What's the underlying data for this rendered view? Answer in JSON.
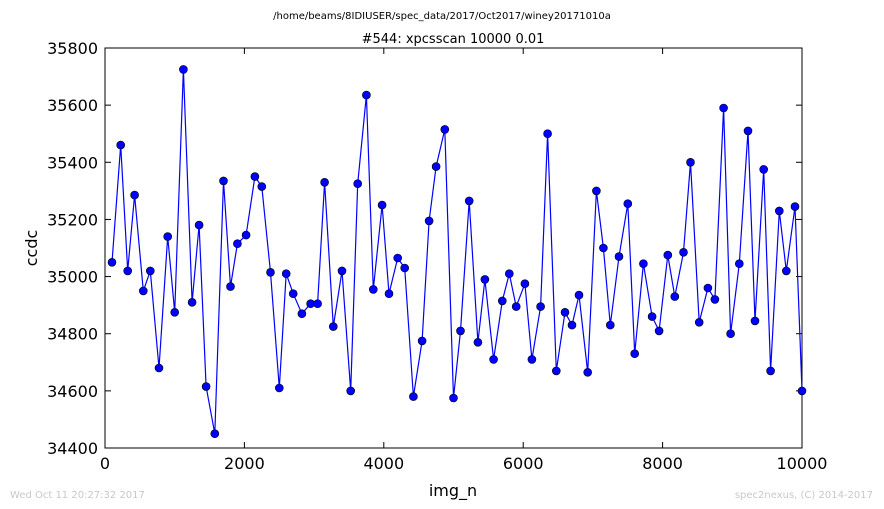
{
  "chart_data": {
    "type": "line",
    "suptitle": "/home/beams/8IDIUSER/spec_data/2017/Oct2017/winey20171010a",
    "title": "#544: xpcsscan 10000 0.01",
    "xlabel": "img_n",
    "ylabel": "ccdc",
    "xlim": [
      0,
      10000
    ],
    "ylim": [
      34400,
      35800
    ],
    "xticks": [
      0,
      2000,
      4000,
      6000,
      8000,
      10000
    ],
    "yticks": [
      34400,
      34600,
      34800,
      35000,
      35200,
      35400,
      35600,
      35800
    ],
    "grid": false,
    "series": [
      {
        "color": "#0000ff",
        "marker": "circle",
        "x": [
          100,
          225,
          325,
          425,
          550,
          650,
          775,
          900,
          1000,
          1125,
          1250,
          1350,
          1450,
          1575,
          1700,
          1800,
          1900,
          2025,
          2150,
          2250,
          2375,
          2500,
          2600,
          2700,
          2825,
          2950,
          3050,
          3150,
          3275,
          3400,
          3525,
          3625,
          3750,
          3850,
          3975,
          4075,
          4200,
          4300,
          4425,
          4550,
          4650,
          4750,
          4875,
          5000,
          5100,
          5225,
          5350,
          5450,
          5575,
          5700,
          5800,
          5900,
          6025,
          6125,
          6250,
          6350,
          6475,
          6600,
          6700,
          6800,
          6925,
          7050,
          7150,
          7250,
          7375,
          7500,
          7600,
          7725,
          7850,
          7950,
          8075,
          8175,
          8300,
          8400,
          8525,
          8650,
          8750,
          8875,
          8975,
          9100,
          9225,
          9325,
          9450,
          9550,
          9675,
          9775,
          9900,
          10000
        ],
        "values": [
          35050,
          35460,
          35020,
          35285,
          34950,
          35020,
          34680,
          35140,
          34875,
          35725,
          34910,
          35180,
          34615,
          34450,
          35335,
          34965,
          35115,
          35145,
          35350,
          35315,
          35015,
          34610,
          35010,
          34940,
          34870,
          34905,
          34905,
          35330,
          34825,
          35020,
          34600,
          35325,
          35635,
          34955,
          35250,
          34940,
          35065,
          35030,
          34580,
          34775,
          35195,
          35385,
          35515,
          34575,
          34810,
          35265,
          34770,
          34990,
          34710,
          34915,
          35010,
          34895,
          34975,
          34710,
          34895,
          35500,
          34670,
          34875,
          34830,
          34935,
          34665,
          35300,
          35100,
          34830,
          35070,
          35255,
          34730,
          35045,
          34860,
          34810,
          35075,
          34930,
          35085,
          35400,
          34840,
          34960,
          34920,
          35590,
          34800,
          35045,
          35510,
          34845,
          35375,
          34670,
          35230,
          35020,
          35245,
          34600
        ]
      }
    ]
  },
  "footer": {
    "left": "Wed Oct 11 20:27:32 2017",
    "right": "spec2nexus, (C) 2014-2017"
  }
}
